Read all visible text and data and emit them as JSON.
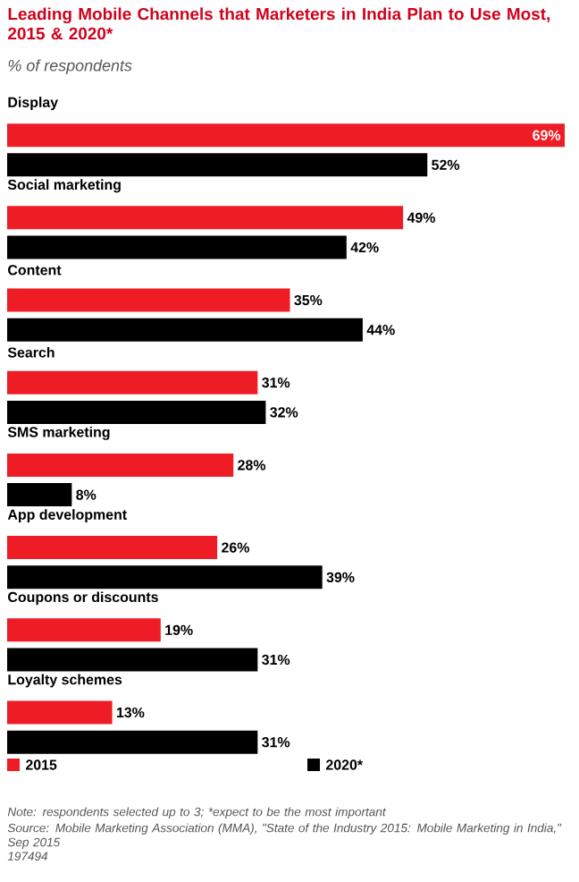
{
  "chart_data": {
    "type": "bar",
    "orientation": "horizontal",
    "title": "Leading Mobile Channels that Marketers in India Plan to Use Most, 2015 & 2020*",
    "subtitle": "% of respondents",
    "categories": [
      "Display",
      "Social marketing",
      "Content",
      "Search",
      "SMS marketing",
      "App development",
      "Coupons or discounts",
      "Loyalty schemes"
    ],
    "series": [
      {
        "name": "2015",
        "color": "#ee1c25",
        "values": [
          69,
          49,
          35,
          31,
          28,
          26,
          19,
          13
        ],
        "value_labels": [
          "69%",
          "49%",
          "35%",
          "31%",
          "28%",
          "26%",
          "19%",
          "13%"
        ]
      },
      {
        "name": "2020*",
        "color": "#000000",
        "values": [
          52,
          42,
          44,
          32,
          8,
          39,
          31,
          31
        ],
        "value_labels": [
          "52%",
          "42%",
          "44%",
          "32%",
          "8%",
          "39%",
          "31%",
          "31%"
        ]
      }
    ],
    "legend": "bottom",
    "annotations": [
      "Note: respondents selected up to 3; *expect to be the most important",
      "Source: Mobile Marketing Association (MMA), \"State of the Industry 2015: Mobile Marketing in India,\" Sep 2015",
      "197494"
    ]
  }
}
